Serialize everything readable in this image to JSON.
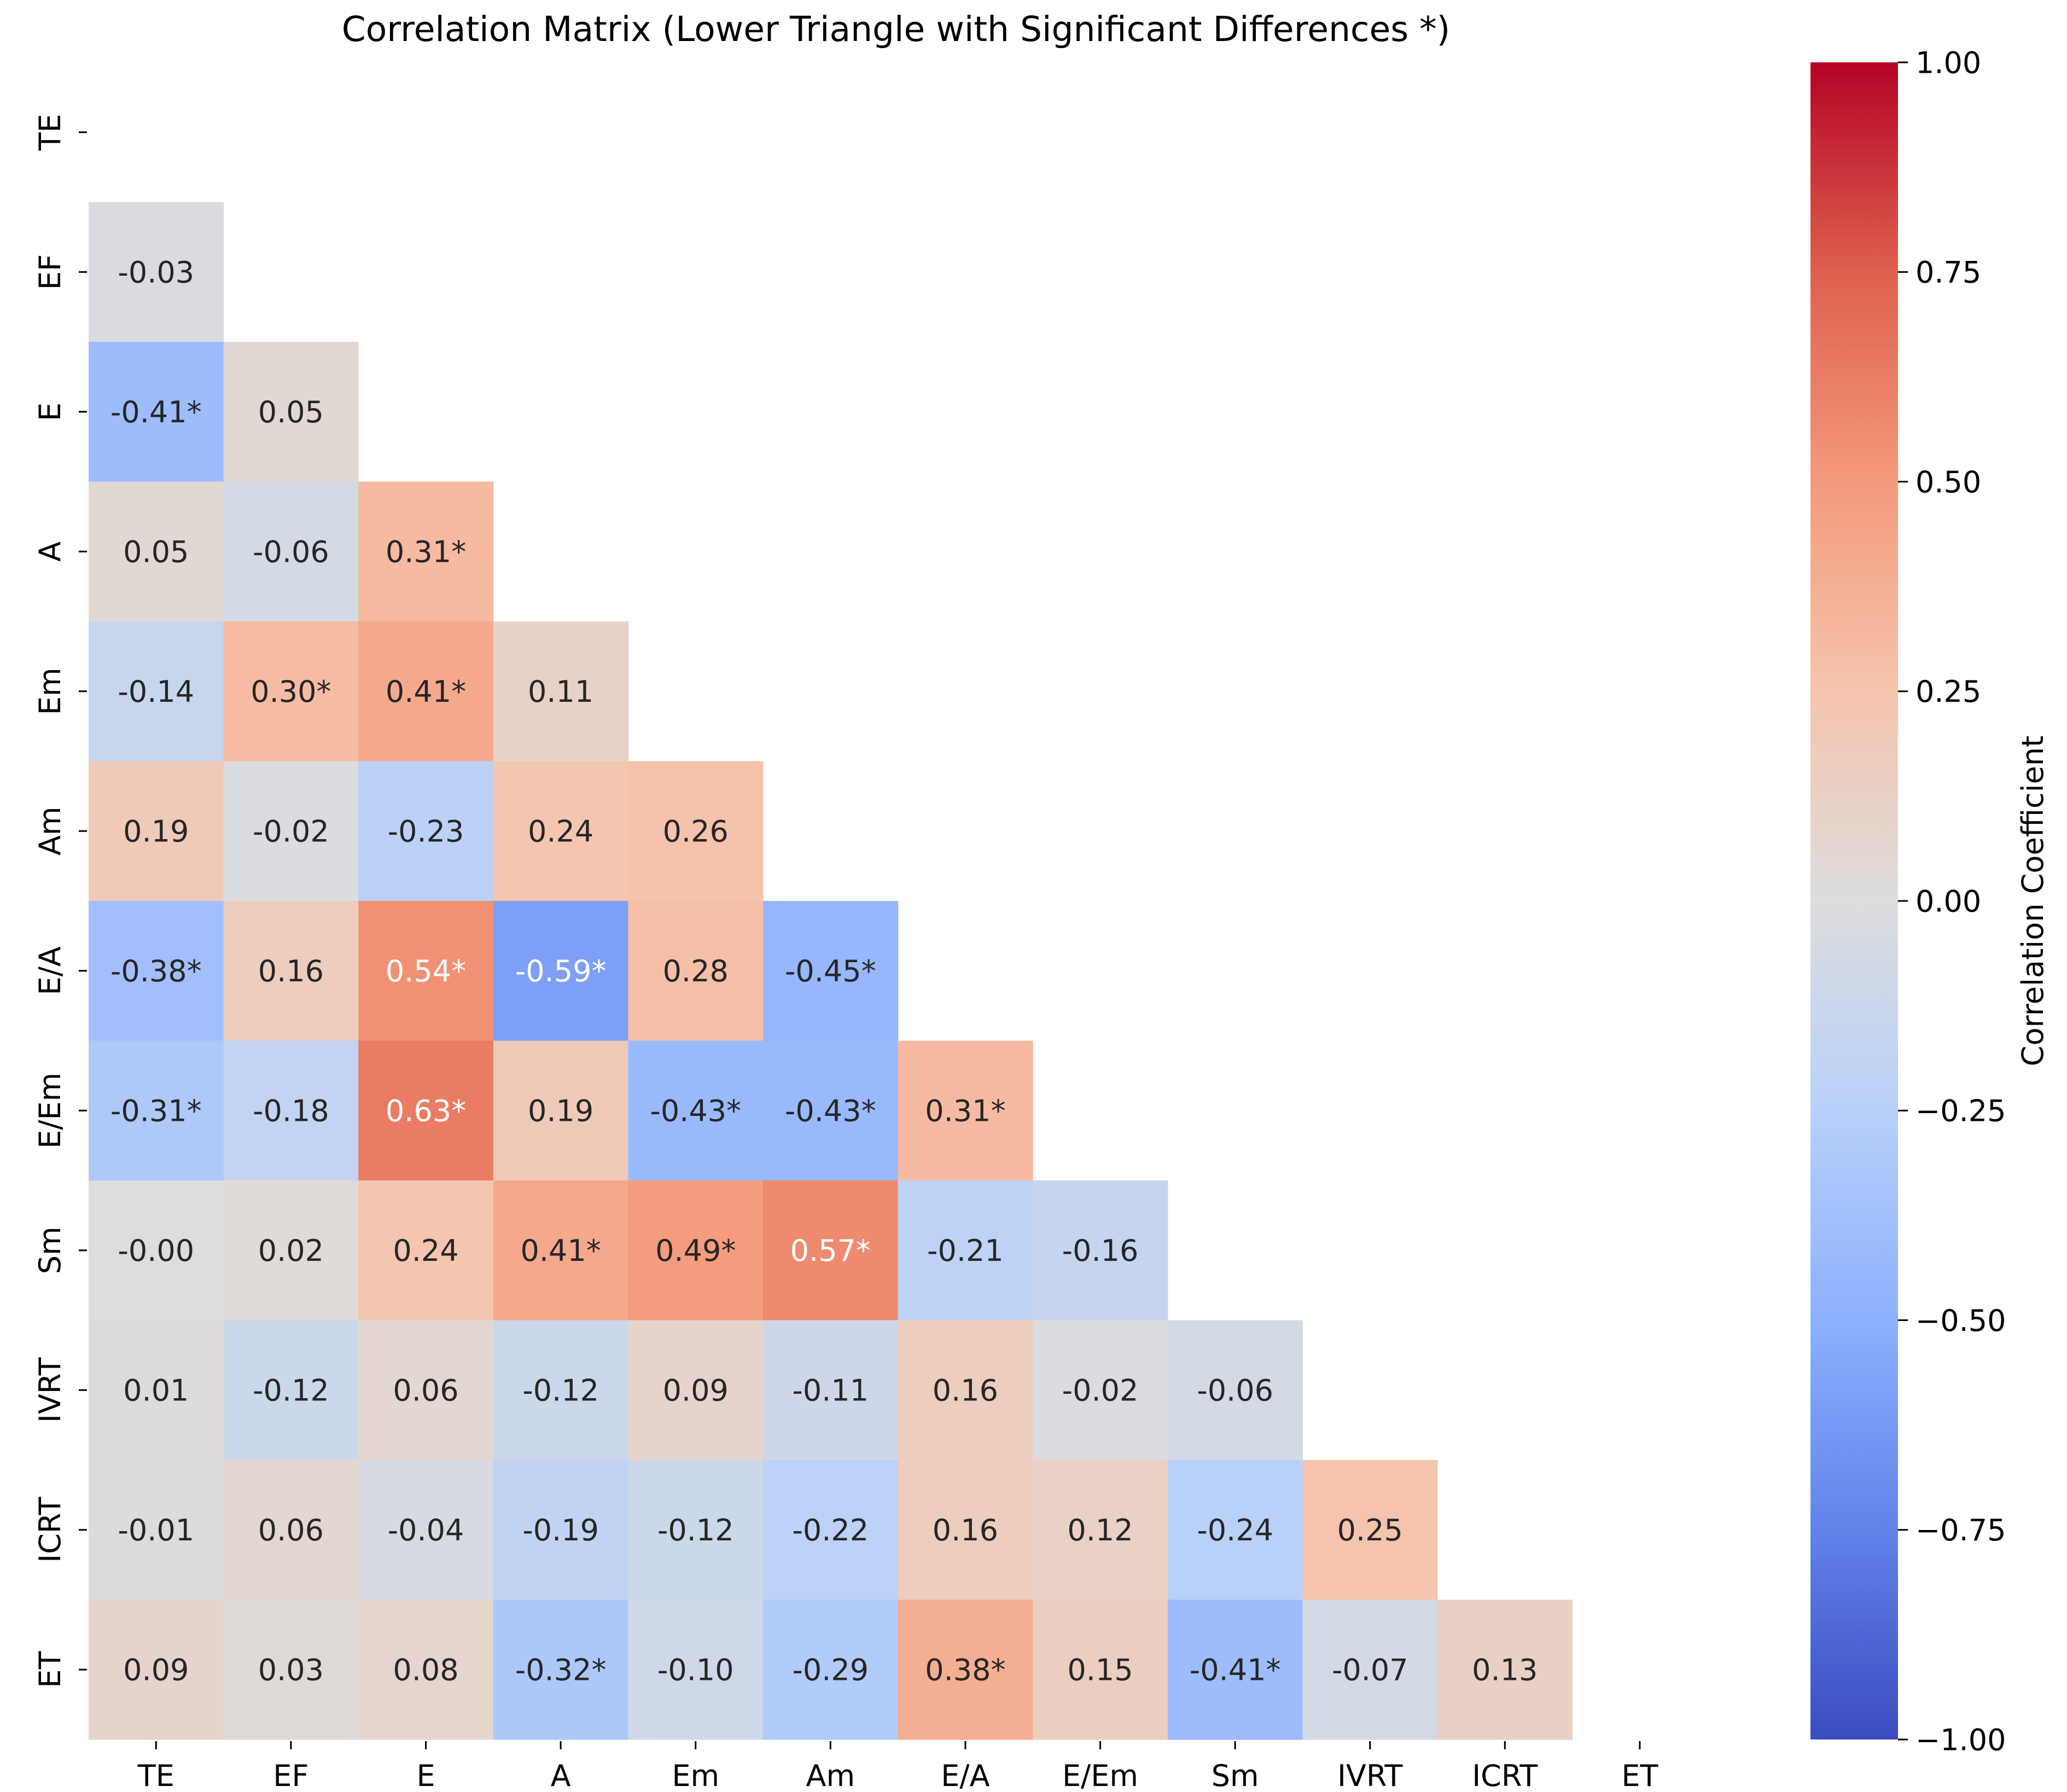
{
  "chart_data": {
    "type": "heatmap",
    "title": "Correlation Matrix (Lower Triangle with Significant Differences *)",
    "variables": [
      "TE",
      "EF",
      "E",
      "A",
      "Em",
      "Am",
      "E/A",
      "E/Em",
      "Sm",
      "IVRT",
      "ICRT",
      "ET"
    ],
    "lower_triangle": [
      [],
      [
        -0.03
      ],
      [
        -0.41,
        0.05
      ],
      [
        0.05,
        -0.06,
        0.31
      ],
      [
        -0.14,
        0.3,
        0.41,
        0.11
      ],
      [
        0.19,
        -0.02,
        -0.23,
        0.24,
        0.26
      ],
      [
        -0.38,
        0.16,
        0.54,
        -0.59,
        0.28,
        -0.45
      ],
      [
        -0.31,
        -0.18,
        0.63,
        0.19,
        -0.43,
        -0.43,
        0.31
      ],
      [
        -0.0,
        0.02,
        0.24,
        0.41,
        0.49,
        0.57,
        -0.21,
        -0.16
      ],
      [
        0.01,
        -0.12,
        0.06,
        -0.12,
        0.09,
        -0.11,
        0.16,
        -0.02,
        -0.06
      ],
      [
        -0.01,
        0.06,
        -0.04,
        -0.19,
        -0.12,
        -0.22,
        0.16,
        0.12,
        -0.24,
        0.25
      ],
      [
        0.09,
        0.03,
        0.08,
        -0.32,
        -0.1,
        -0.29,
        0.38,
        0.15,
        -0.41,
        -0.07,
        0.13
      ]
    ],
    "annotations": [
      [],
      [
        "-0.03"
      ],
      [
        "-0.41*",
        "0.05"
      ],
      [
        "0.05",
        "-0.06",
        "0.31*"
      ],
      [
        "-0.14",
        "0.30*",
        "0.41*",
        "0.11"
      ],
      [
        "0.19",
        "-0.02",
        "-0.23",
        "0.24",
        "0.26"
      ],
      [
        "-0.38*",
        "0.16",
        "0.54*",
        "-0.59*",
        "0.28",
        "-0.45*"
      ],
      [
        "-0.31*",
        "-0.18",
        "0.63*",
        "0.19",
        "-0.43*",
        "-0.43*",
        "0.31*"
      ],
      [
        "-0.00",
        "0.02",
        "0.24",
        "0.41*",
        "0.49*",
        "0.57*",
        "-0.21",
        "-0.16"
      ],
      [
        "0.01",
        "-0.12",
        "0.06",
        "-0.12",
        "0.09",
        "-0.11",
        "0.16",
        "-0.02",
        "-0.06"
      ],
      [
        "-0.01",
        "0.06",
        "-0.04",
        "-0.19",
        "-0.12",
        "-0.22",
        "0.16",
        "0.12",
        "-0.24",
        "0.25"
      ],
      [
        "0.09",
        "0.03",
        "0.08",
        "-0.32*",
        "-0.10",
        "-0.29",
        "0.38*",
        "0.15",
        "-0.41*",
        "-0.07",
        "0.13"
      ]
    ],
    "colormap": "coolwarm",
    "vmin": -1.0,
    "vmax": 1.0,
    "colorbar": {
      "label": "Correlation Coefficient",
      "ticks": [
        1.0,
        0.75,
        0.5,
        0.25,
        0.0,
        -0.25,
        -0.5,
        -0.75,
        -1.0
      ],
      "tick_labels": [
        "1.00",
        "0.75",
        "0.50",
        "0.25",
        "0.00",
        "−0.25",
        "−0.50",
        "−0.75",
        "−1.00"
      ]
    }
  }
}
